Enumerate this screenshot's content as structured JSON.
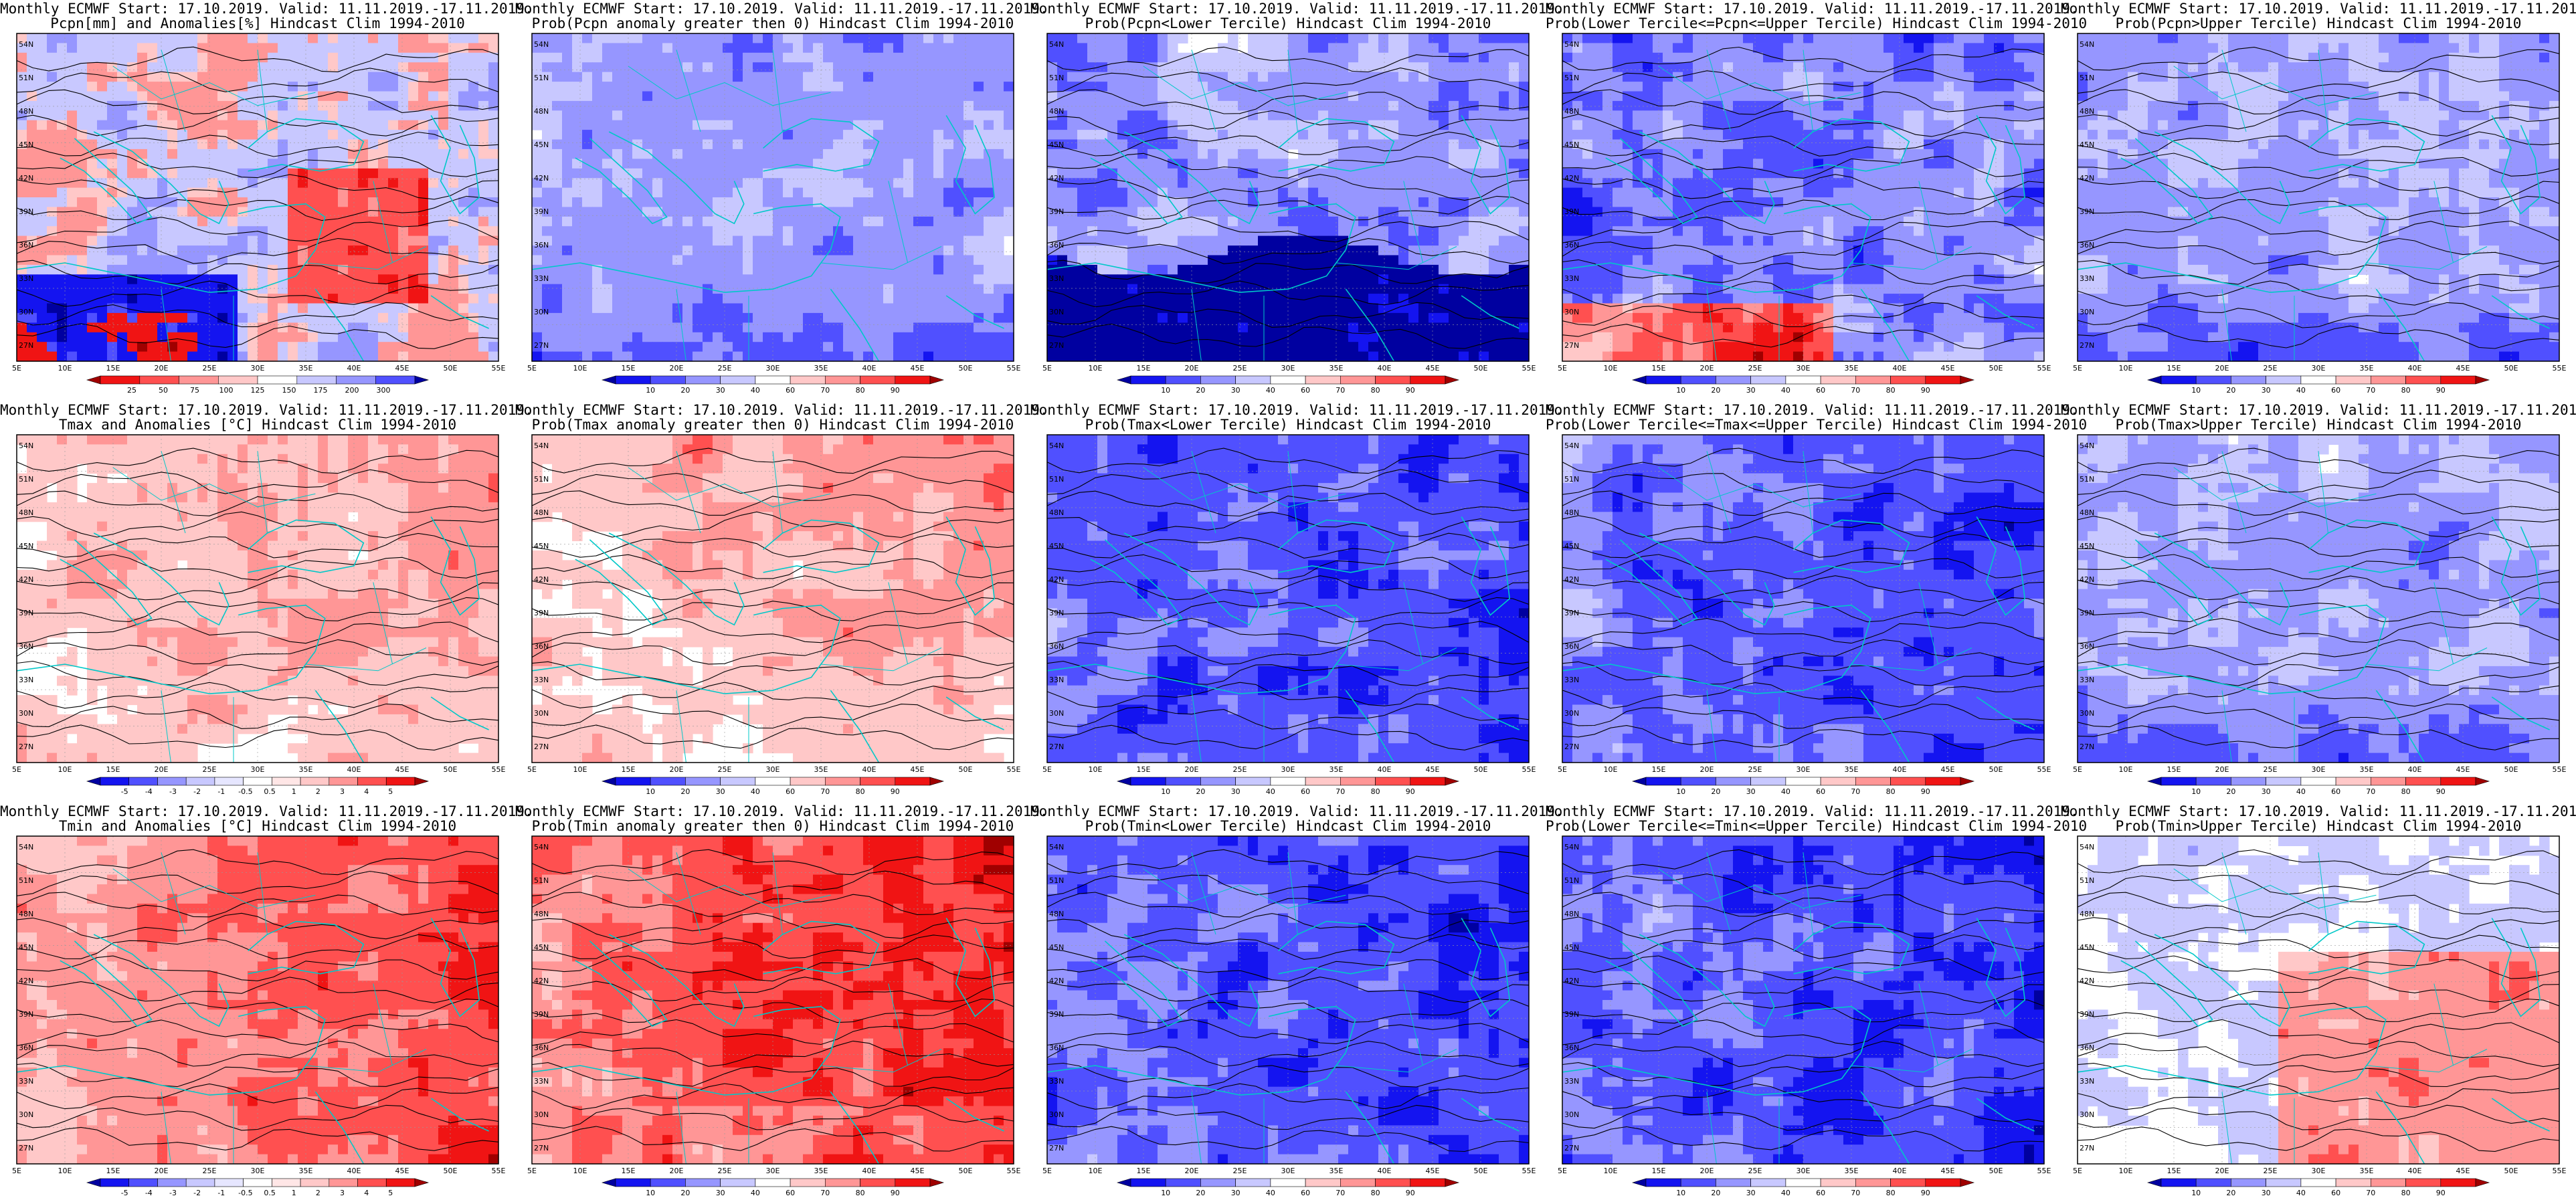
{
  "header": "Monthly ECMWF Start: 17.10.2019. Valid: 11.11.2019.-17.11.2019.",
  "lat_labels": [
    "54N",
    "51N",
    "48N",
    "45N",
    "42N",
    "39N",
    "36N",
    "33N",
    "30N",
    "27N"
  ],
  "lon_labels": [
    "5E",
    "10E",
    "15E",
    "20E",
    "25E",
    "30E",
    "35E",
    "40E",
    "45E",
    "50E",
    "55E"
  ],
  "colorbars": {
    "pcpn": [
      "25",
      "50",
      "75",
      "100",
      "125",
      "150",
      "175",
      "200",
      "300"
    ],
    "anom": [
      "-5",
      "-4",
      "-3",
      "-2",
      "-1",
      "-0.5",
      "0.5",
      "1",
      "2",
      "3",
      "4",
      "5"
    ],
    "prob": [
      "10",
      "20",
      "30",
      "40",
      "60",
      "70",
      "80",
      "90"
    ]
  },
  "panels": [
    {
      "id": "p-r1c1",
      "row": 0,
      "col": 0,
      "subtitle": "Pcpn[mm] and Anomalies[%] Hindcast Clim 1994-2010",
      "bar": "pcpn",
      "field": "pcpn_anom",
      "contours": "black"
    },
    {
      "id": "p-r1c2",
      "row": 0,
      "col": 1,
      "subtitle": "Prob(Pcpn anomaly greater then 0) Hindcast Clim 1994-2010",
      "bar": "prob",
      "field": "blue_mod",
      "contours": "none"
    },
    {
      "id": "p-r1c3",
      "row": 0,
      "col": 2,
      "subtitle": "Prob(Pcpn<Lower Tercile) Hindcast Clim 1994-2010",
      "bar": "prob",
      "field": "blue_south_dark",
      "contours": "black"
    },
    {
      "id": "p-r1c4",
      "row": 0,
      "col": 3,
      "subtitle": "Prob(Lower Tercile<=Pcpn<=Upper Tercile) Hindcast Clim 1994-2010",
      "bar": "prob",
      "field": "blue_red_south",
      "contours": "black"
    },
    {
      "id": "p-r1c5",
      "row": 0,
      "col": 4,
      "subtitle": "Prob(Pcpn>Upper Tercile) Hindcast Clim 1994-2010",
      "bar": "prob",
      "field": "blue_mod",
      "contours": "black"
    },
    {
      "id": "p-r2c1",
      "row": 1,
      "col": 0,
      "subtitle": "Tmax and Anomalies [°C] Hindcast Clim 1994-2010",
      "bar": "anom",
      "field": "red_light",
      "contours": "black"
    },
    {
      "id": "p-r2c2",
      "row": 1,
      "col": 1,
      "subtitle": "Prob(Tmax anomaly greater then 0) Hindcast Clim 1994-2010",
      "bar": "prob",
      "field": "red_light",
      "contours": "black"
    },
    {
      "id": "p-r2c3",
      "row": 1,
      "col": 2,
      "subtitle": "Prob(Tmax<Lower Tercile) Hindcast Clim 1994-2010",
      "bar": "prob",
      "field": "blue_strong",
      "contours": "black"
    },
    {
      "id": "p-r2c4",
      "row": 1,
      "col": 3,
      "subtitle": "Prob(Lower Tercile<=Tmax<=Upper Tercile) Hindcast Clim 1994-2010",
      "bar": "prob",
      "field": "blue_strong",
      "contours": "black"
    },
    {
      "id": "p-r2c5",
      "row": 1,
      "col": 4,
      "subtitle": "Prob(Tmax>Upper Tercile) Hindcast Clim 1994-2010",
      "bar": "prob",
      "field": "blue_mod",
      "contours": "black"
    },
    {
      "id": "p-r3c1",
      "row": 2,
      "col": 0,
      "subtitle": "Tmin and Anomalies [°C] Hindcast Clim 1994-2010",
      "bar": "anom",
      "field": "red_mod",
      "contours": "black"
    },
    {
      "id": "p-r3c2",
      "row": 2,
      "col": 1,
      "subtitle": "Prob(Tmin anomaly greater then 0) Hindcast Clim 1994-2010",
      "bar": "prob",
      "field": "red_strong",
      "contours": "black"
    },
    {
      "id": "p-r3c3",
      "row": 2,
      "col": 2,
      "subtitle": "Prob(Tmin<Lower Tercile) Hindcast Clim 1994-2010",
      "bar": "prob",
      "field": "blue_strong",
      "contours": "black"
    },
    {
      "id": "p-r3c4",
      "row": 2,
      "col": 3,
      "subtitle": "Prob(Lower Tercile<=Tmin<=Upper Tercile) Hindcast Clim 1994-2010",
      "bar": "prob",
      "field": "blue_strong",
      "contours": "black"
    },
    {
      "id": "p-r3c5",
      "row": 2,
      "col": 4,
      "subtitle": "Prob(Tmin>Upper Tercile) Hindcast Clim 1994-2010",
      "bar": "prob",
      "field": "red_light_patch",
      "contours": "black"
    }
  ],
  "colors": {
    "coast": "#00c8c8",
    "contour": "#000000",
    "frame": "#000000",
    "prob_scale": [
      "#0000a0",
      "#1414f0",
      "#5050ff",
      "#9696ff",
      "#c8c8ff",
      "#ffffff",
      "#ffc8c8",
      "#ff9696",
      "#ff5050",
      "#f01414",
      "#a00000"
    ]
  }
}
